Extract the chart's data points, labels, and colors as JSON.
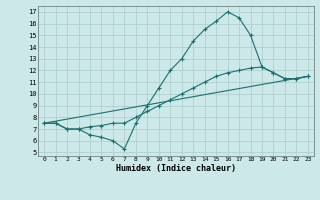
{
  "xlabel": "Humidex (Indice chaleur)",
  "bg_color": "#cce8e8",
  "grid_color": "#b0d0d0",
  "line_color": "#1a7070",
  "xlim": [
    -0.5,
    23.5
  ],
  "ylim": [
    4.7,
    17.5
  ],
  "xticks": [
    0,
    1,
    2,
    3,
    4,
    5,
    6,
    7,
    8,
    9,
    10,
    11,
    12,
    13,
    14,
    15,
    16,
    17,
    18,
    19,
    20,
    21,
    22,
    23
  ],
  "yticks": [
    5,
    6,
    7,
    8,
    9,
    10,
    11,
    12,
    13,
    14,
    15,
    16,
    17
  ],
  "line1_x": [
    0,
    1,
    2,
    3,
    4,
    5,
    6,
    7,
    8,
    9,
    10,
    11,
    12,
    13,
    14,
    15,
    16,
    17,
    18,
    19,
    20,
    21,
    22,
    23
  ],
  "line1_y": [
    7.5,
    7.5,
    7.0,
    7.0,
    6.5,
    6.3,
    6.0,
    5.3,
    7.5,
    9.0,
    10.5,
    12.0,
    13.0,
    14.5,
    15.5,
    16.2,
    17.0,
    16.5,
    15.0,
    12.3,
    11.8,
    11.3,
    11.3,
    11.5
  ],
  "line2_x": [
    0,
    1,
    2,
    3,
    4,
    5,
    6,
    7,
    8,
    9,
    10,
    11,
    12,
    13,
    14,
    15,
    16,
    17,
    18,
    19,
    20,
    21,
    22,
    23
  ],
  "line2_y": [
    7.5,
    7.5,
    7.0,
    7.0,
    7.2,
    7.3,
    7.5,
    7.5,
    8.0,
    8.5,
    9.0,
    9.5,
    10.0,
    10.5,
    11.0,
    11.5,
    11.8,
    12.0,
    12.2,
    12.3,
    11.8,
    11.3,
    11.3,
    11.5
  ],
  "line3_x": [
    0,
    23
  ],
  "line3_y": [
    7.5,
    11.5
  ]
}
